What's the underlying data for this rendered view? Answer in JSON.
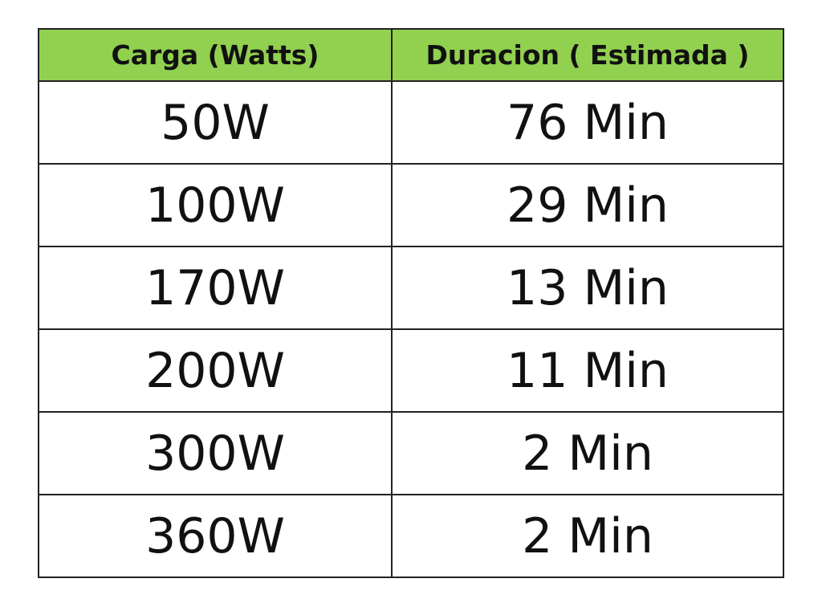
{
  "table": {
    "header": [
      "Carga (Watts)",
      "Duracion ( Estimada )"
    ],
    "rows": [
      [
        "50W",
        "76 Min"
      ],
      [
        "100W",
        "29 Min"
      ],
      [
        "170W",
        "13 Min"
      ],
      [
        "200W",
        "11 Min"
      ],
      [
        "300W",
        "2 Min"
      ],
      [
        "360W",
        "2 Min"
      ]
    ]
  }
}
